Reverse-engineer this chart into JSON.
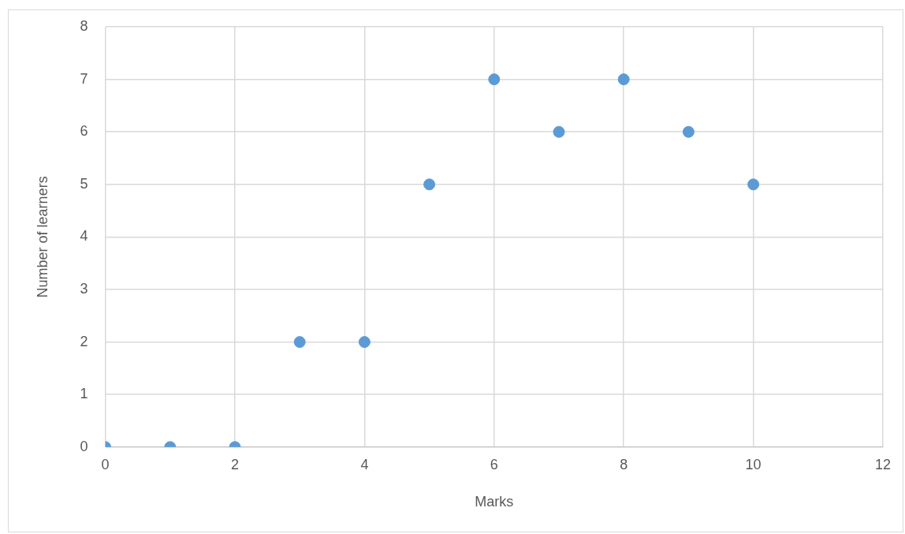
{
  "chart_data": {
    "type": "scatter",
    "xlabel": "Marks",
    "ylabel": "Number of learners",
    "x": [
      0,
      1,
      2,
      3,
      4,
      5,
      6,
      7,
      8,
      9,
      10
    ],
    "series": [
      {
        "color": "#5b9bd5",
        "values": [
          0,
          0,
          0,
          2,
          2,
          5,
          7,
          6,
          7,
          6,
          5
        ]
      }
    ],
    "xlim": [
      0,
      12
    ],
    "xticks": [
      0,
      2,
      4,
      6,
      8,
      10,
      12
    ],
    "ylim": [
      0,
      8
    ],
    "yticks": [
      0,
      1,
      2,
      3,
      4,
      5,
      6,
      7,
      8
    ],
    "grid": true,
    "legend": false,
    "marker": "circle"
  }
}
